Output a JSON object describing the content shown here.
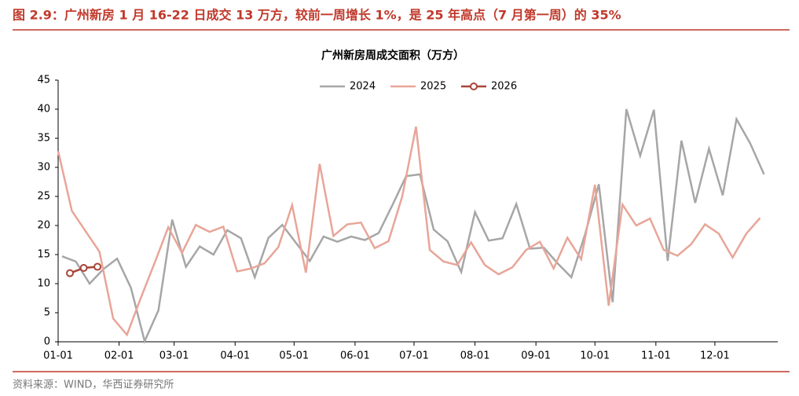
{
  "figure_title": "图 2.9：广州新房 1 月 16-22 日成交 13 万方，较前一周增长 1%，是 25 年高点（7 月第一周）的 35%",
  "source": "资料来源：WIND，华西证券研究所",
  "chart_data": {
    "type": "line",
    "title": "广州新房周成交面积（万方）",
    "xlim": [
      0,
      366
    ],
    "xticks": [
      {
        "value": 0,
        "label": "01-01"
      },
      {
        "value": 31,
        "label": "02-01"
      },
      {
        "value": 59,
        "label": "03-01"
      },
      {
        "value": 90,
        "label": "04-01"
      },
      {
        "value": 120,
        "label": "05-01"
      },
      {
        "value": 151,
        "label": "06-01"
      },
      {
        "value": 181,
        "label": "07-01"
      },
      {
        "value": 212,
        "label": "08-01"
      },
      {
        "value": 243,
        "label": "09-01"
      },
      {
        "value": 273,
        "label": "10-01"
      },
      {
        "value": 304,
        "label": "11-01"
      },
      {
        "value": 334,
        "label": "12-01"
      }
    ],
    "ylim": [
      0,
      45
    ],
    "yticks": [
      0,
      5,
      10,
      15,
      20,
      25,
      30,
      35,
      40,
      45
    ],
    "legend": "top",
    "series": [
      {
        "name": "2024",
        "color": "#a6a6a6",
        "marker": false,
        "x": [
          2,
          9,
          16,
          23,
          30,
          37,
          44,
          51,
          58,
          65,
          72,
          79,
          86,
          93,
          100,
          107,
          114,
          121,
          128,
          135,
          142,
          149,
          156,
          163,
          170,
          177,
          184,
          191,
          198,
          205,
          212,
          219,
          226,
          233,
          240,
          247,
          254,
          261,
          268,
          275,
          282,
          289,
          296,
          303,
          310,
          317,
          324,
          331,
          338,
          345,
          352,
          359
        ],
        "values": [
          14.7,
          13.8,
          10,
          12.5,
          14.3,
          9.3,
          0.1,
          5.4,
          21,
          12.9,
          16.4,
          15,
          19.2,
          17.8,
          11.1,
          17.9,
          20.1,
          17,
          13.9,
          18.1,
          17.2,
          18.1,
          17.5,
          18.7,
          23.5,
          28.5,
          28.8,
          19.3,
          17.3,
          12,
          22.3,
          17.4,
          17.8,
          23.7,
          16,
          16.2,
          13.5,
          11.1,
          18.5,
          27.1,
          6.8,
          40,
          32,
          39.9,
          13.9,
          34.6,
          23.9,
          33.2,
          25.2,
          38.3,
          34.1,
          28.8
        ]
      },
      {
        "name": "2025",
        "color": "#e8a598",
        "marker": false,
        "x": [
          0,
          7,
          14,
          21,
          28,
          35,
          42,
          49,
          56,
          63,
          70,
          77,
          84,
          91,
          98,
          105,
          112,
          119,
          126,
          133,
          140,
          147,
          154,
          161,
          168,
          175,
          182,
          189,
          196,
          203,
          210,
          217,
          224,
          231,
          238,
          245,
          252,
          259,
          266,
          273,
          280,
          287,
          294,
          301,
          308,
          315,
          322,
          329,
          336,
          343,
          350,
          357
        ],
        "values": [
          32.8,
          22.5,
          19,
          15.5,
          4,
          1.2,
          7.5,
          13.5,
          19.7,
          15.3,
          20.1,
          18.9,
          19.8,
          12.1,
          12.6,
          13.5,
          16.3,
          23.5,
          11.9,
          30.6,
          18.2,
          20.2,
          20.5,
          16.1,
          17.3,
          25,
          37,
          15.8,
          13.8,
          13.2,
          17.1,
          13.2,
          11.6,
          12.8,
          15.8,
          17.2,
          12.6,
          17.9,
          14.2,
          27,
          6.2,
          23.6,
          20,
          21.2,
          15.8,
          14.8,
          16.8,
          20.2,
          18.6,
          14.5,
          18.6,
          21.3
        ]
      },
      {
        "name": "2026",
        "color": "#a94438",
        "marker": true,
        "x": [
          6,
          13,
          20
        ],
        "values": [
          11.8,
          12.7,
          12.9
        ]
      }
    ]
  }
}
